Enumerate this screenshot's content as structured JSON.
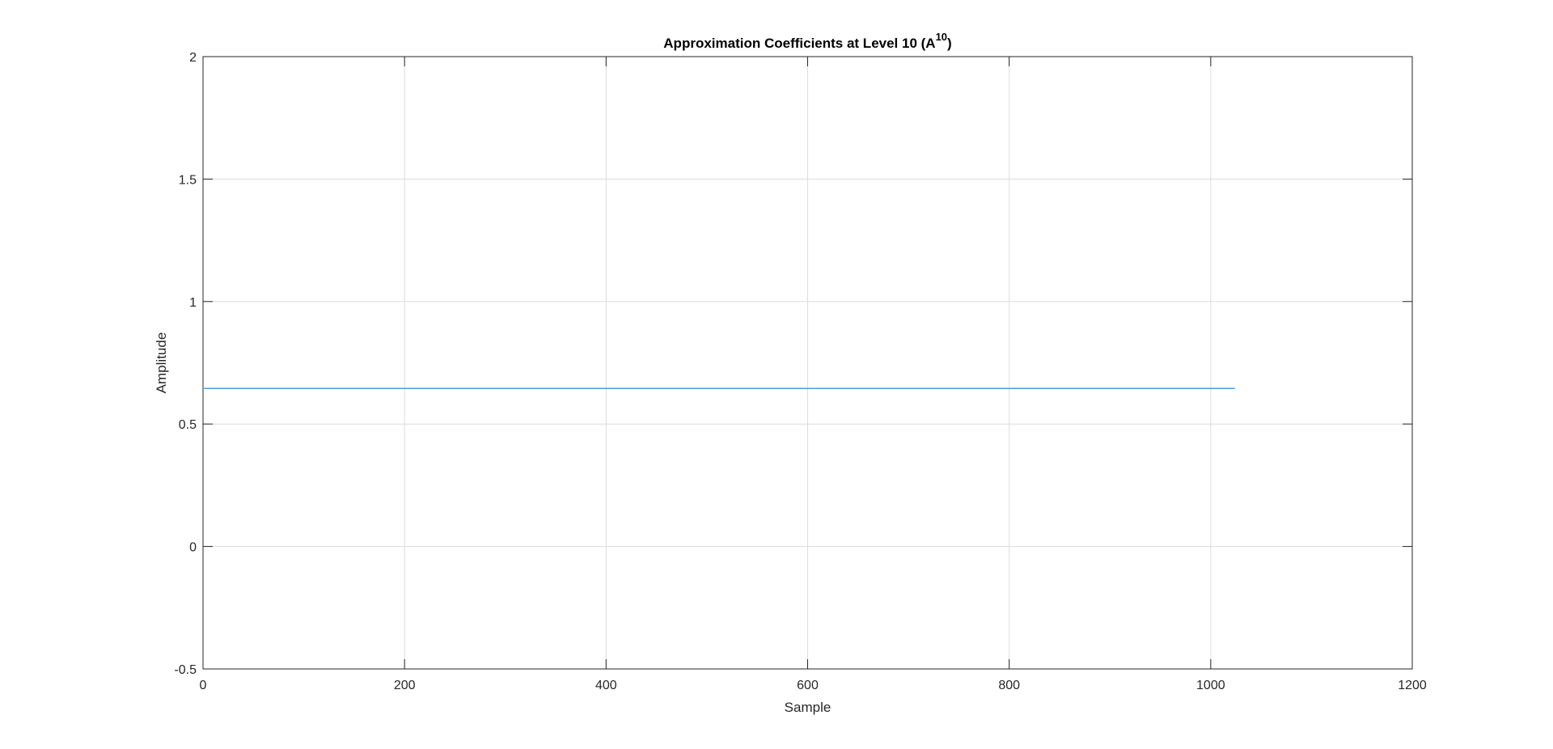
{
  "chart_data": {
    "type": "line",
    "title": "Approximation Coefficients at Level 10 (A",
    "title_superscript": "10",
    "title_suffix": ")",
    "xlabel": "Sample",
    "ylabel": "Amplitude",
    "xlim": [
      0,
      1200
    ],
    "ylim": [
      -0.5,
      2
    ],
    "xticks": [
      0,
      200,
      400,
      600,
      800,
      1000,
      1200
    ],
    "yticks": [
      -0.5,
      0,
      0.5,
      1,
      1.5,
      2
    ],
    "xtick_labels": [
      "0",
      "200",
      "400",
      "600",
      "800",
      "1000",
      "1200"
    ],
    "ytick_labels": [
      "-0.5",
      "0",
      "0.5",
      "1",
      "1.5",
      "2"
    ],
    "grid": true,
    "series": [
      {
        "color": "#4a9de0",
        "x": [
          1,
          1024
        ],
        "y": [
          0.645,
          0.645
        ]
      }
    ]
  }
}
